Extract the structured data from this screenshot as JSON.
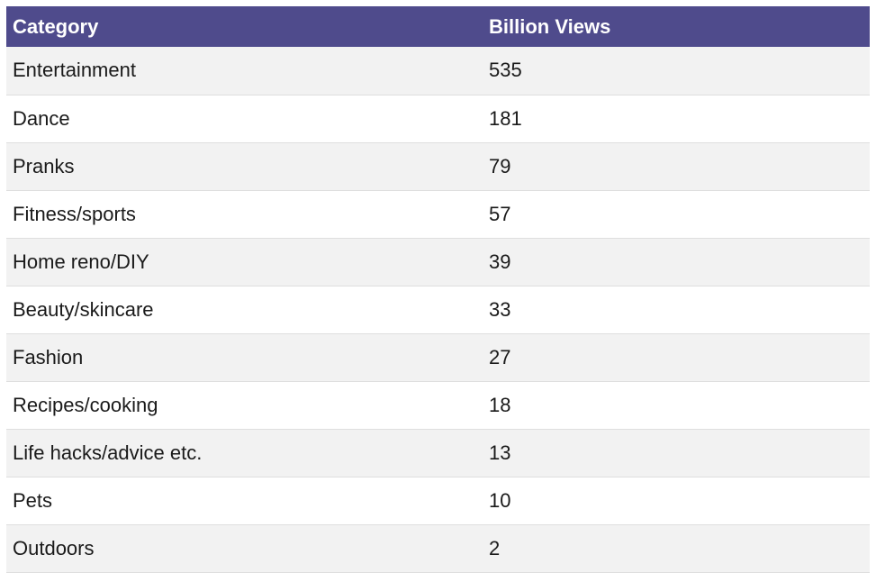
{
  "chart_data": {
    "type": "table",
    "columns": [
      "Category",
      "Billion Views"
    ],
    "rows": [
      [
        "Entertainment",
        "535"
      ],
      [
        "Dance",
        "181"
      ],
      [
        "Pranks",
        "79"
      ],
      [
        "Fitness/sports",
        "57"
      ],
      [
        "Home reno/DIY",
        "39"
      ],
      [
        "Beauty/skincare",
        "33"
      ],
      [
        "Fashion",
        "27"
      ],
      [
        "Recipes/cooking",
        "18"
      ],
      [
        "Life hacks/advice etc.",
        "13"
      ],
      [
        "Pets",
        "10"
      ],
      [
        "Outdoors",
        "2"
      ]
    ]
  },
  "colors": {
    "header_bg": "#4f4b8c",
    "header_text": "#ffffff",
    "row_alt_bg": "#f2f2f2",
    "row_bg": "#ffffff"
  }
}
